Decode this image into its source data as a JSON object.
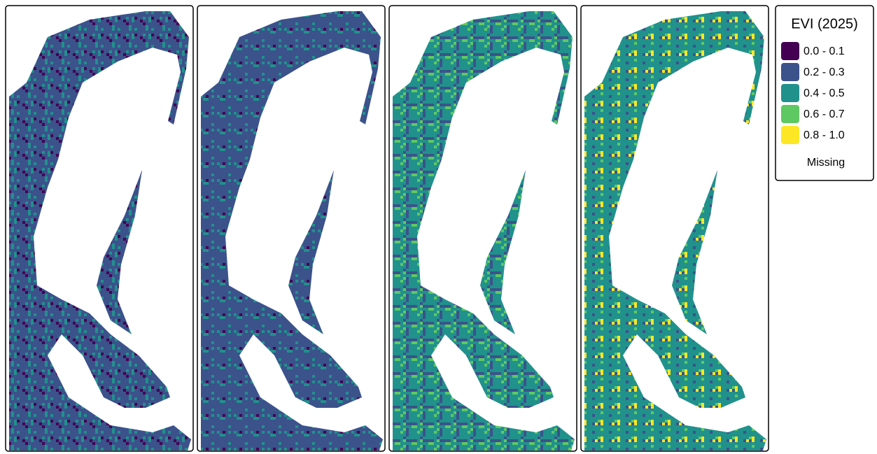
{
  "legend": {
    "title": "EVI (2025)",
    "items": [
      {
        "label": "0.0 - 0.1",
        "color": "#440154"
      },
      {
        "label": "0.2 - 0.3",
        "color": "#3b528b"
      },
      {
        "label": "0.4 - 0.5",
        "color": "#21918c"
      },
      {
        "label": "0.6 - 0.7",
        "color": "#5ec962"
      },
      {
        "label": "0.8 - 1.0",
        "color": "#fde725"
      }
    ],
    "missing": "Missing"
  }
}
